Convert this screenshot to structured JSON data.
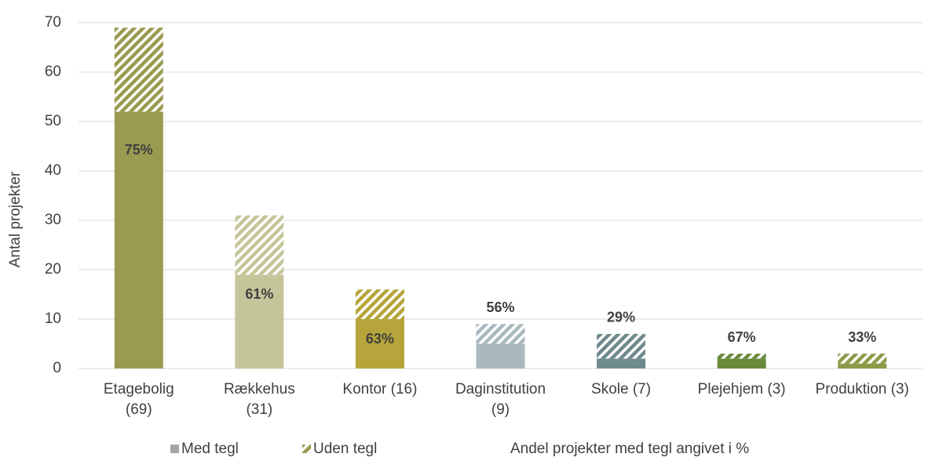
{
  "chart_data": {
    "type": "stacked_bar",
    "y_axis_label": "Antal projekter",
    "categories": [
      [
        "Etagebolig",
        "(69)"
      ],
      [
        "Rækkehus",
        "(31)"
      ],
      [
        "Kontor (16)"
      ],
      [
        "Daginstitution",
        "(9)"
      ],
      [
        "Skole (7)"
      ],
      [
        "Plejehjem (3)"
      ],
      [
        "Produktion (3)"
      ]
    ],
    "colors": [
      "#9a9b50",
      "#c5c59a",
      "#b5a53a",
      "#a9b9bd",
      "#6f8a8d",
      "#6a8a3c",
      "#8f9a47"
    ],
    "series": [
      {
        "name": "Med tegl",
        "color": "#a6a6a6",
        "values": [
          52,
          19,
          10,
          5,
          2,
          2,
          1
        ]
      },
      {
        "name": "Uden tegl",
        "color": "#9a9b50",
        "hatched": true,
        "values": [
          17,
          12,
          6,
          4,
          5,
          1,
          2
        ]
      }
    ],
    "share_labels": [
      "75%",
      "61%",
      "63%",
      "56%",
      "29%",
      "67%",
      "33%"
    ],
    "legend_note": "Andel projekter med tegl angivet i %",
    "ylim": [
      0,
      70
    ],
    "yticks": [
      0,
      10,
      20,
      30,
      40,
      50,
      60,
      70
    ],
    "grid": true,
    "legend": "bottom"
  }
}
